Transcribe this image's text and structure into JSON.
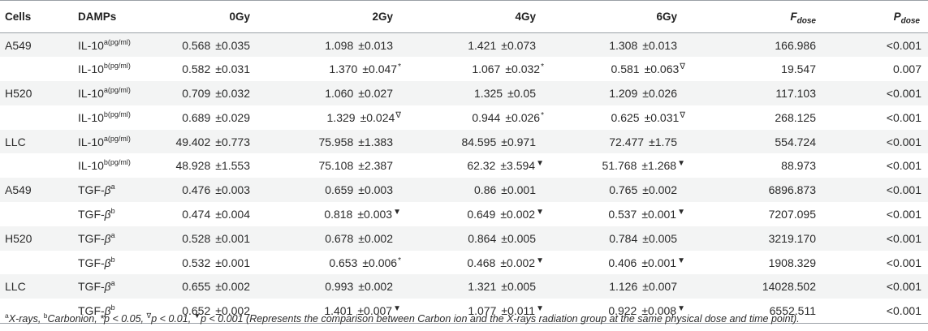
{
  "headers": {
    "cells": "Cells",
    "damps": "DAMPs",
    "d0": "0Gy",
    "d2": "2Gy",
    "d4": "4Gy",
    "d6": "6Gy",
    "f_main": "F",
    "f_sub": "dose",
    "p_main": "P",
    "p_sub": "dose"
  },
  "pm": "±",
  "rows": [
    {
      "cell": "A549",
      "base": "IL-10",
      "sup": "a(pg/ml)",
      "beta": false,
      "v0": "0.568",
      "e0": "0.035",
      "m0": "",
      "v2": "1.098",
      "e2": "0.013",
      "m2": "",
      "v4": "1.421",
      "e4": "0.073",
      "m4": "",
      "v6": "1.308",
      "e6": "0.013",
      "m6": "",
      "f": "166.986",
      "p": "<0.001"
    },
    {
      "cell": "",
      "base": "IL-10",
      "sup": "b(pg/ml)",
      "beta": false,
      "v0": "0.582",
      "e0": "0.031",
      "m0": "",
      "v2": "1.370",
      "e2": "0.047",
      "m2": "*",
      "v4": "1.067",
      "e4": "0.032",
      "m4": "*",
      "v6": "0.581",
      "e6": "0.063",
      "m6": "∇",
      "f": "19.547",
      "p": "0.007"
    },
    {
      "cell": "H520",
      "base": "IL-10",
      "sup": "a(pg/ml)",
      "beta": false,
      "v0": "0.709",
      "e0": "0.032",
      "m0": "",
      "v2": "1.060",
      "e2": "0.027",
      "m2": "",
      "v4": "1.325",
      "e4": "0.05",
      "m4": "",
      "v6": "1.209",
      "e6": "0.026",
      "m6": "",
      "f": "117.103",
      "p": "<0.001"
    },
    {
      "cell": "",
      "base": "IL-10",
      "sup": "b(pg/ml)",
      "beta": false,
      "v0": "0.689",
      "e0": "0.029",
      "m0": "",
      "v2": "1.329",
      "e2": "0.024",
      "m2": "∇",
      "v4": "0.944",
      "e4": "0.026",
      "m4": "*",
      "v6": "0.625",
      "e6": "0.031",
      "m6": "∇",
      "f": "268.125",
      "p": "<0.001"
    },
    {
      "cell": "LLC",
      "base": "IL-10",
      "sup": "a(pg/ml)",
      "beta": false,
      "v0": "49.402",
      "e0": "0.773",
      "m0": "",
      "v2": "75.958",
      "e2": "1.383",
      "m2": "",
      "v4": "84.595",
      "e4": "0.971",
      "m4": "",
      "v6": "72.477",
      "e6": "1.75",
      "m6": "",
      "f": "554.724",
      "p": "<0.001"
    },
    {
      "cell": "",
      "base": "IL-10",
      "sup": "b(pg/ml)",
      "beta": false,
      "v0": "48.928",
      "e0": "1.553",
      "m0": "",
      "v2": "75.108",
      "e2": "2.387",
      "m2": "",
      "v4": "62.32",
      "e4": "3.594",
      "m4": "▼",
      "v6": "51.768",
      "e6": "1.268",
      "m6": "▼",
      "f": "88.973",
      "p": "<0.001"
    },
    {
      "cell": "A549",
      "base": "TGF-",
      "sup": "a",
      "beta": true,
      "v0": "0.476",
      "e0": "0.003",
      "m0": "",
      "v2": "0.659",
      "e2": "0.003",
      "m2": "",
      "v4": "0.86",
      "e4": "0.001",
      "m4": "",
      "v6": "0.765",
      "e6": "0.002",
      "m6": "",
      "f": "6896.873",
      "p": "<0.001"
    },
    {
      "cell": "",
      "base": "TGF-",
      "sup": "b",
      "beta": true,
      "v0": "0.474",
      "e0": "0.004",
      "m0": "",
      "v2": "0.818",
      "e2": "0.003",
      "m2": "▼",
      "v4": "0.649",
      "e4": "0.002",
      "m4": "▼",
      "v6": "0.537",
      "e6": "0.001",
      "m6": "▼",
      "f": "7207.095",
      "p": "<0.001"
    },
    {
      "cell": "H520",
      "base": "TGF-",
      "sup": "a",
      "beta": true,
      "v0": "0.528",
      "e0": "0.001",
      "m0": "",
      "v2": "0.678",
      "e2": "0.002",
      "m2": "",
      "v4": "0.864",
      "e4": "0.005",
      "m4": "",
      "v6": "0.784",
      "e6": "0.005",
      "m6": "",
      "f": "3219.170",
      "p": "<0.001"
    },
    {
      "cell": "",
      "base": "TGF-",
      "sup": "b",
      "beta": true,
      "v0": "0.532",
      "e0": "0.001",
      "m0": "",
      "v2": "0.653",
      "e2": "0.006",
      "m2": "*",
      "v4": "0.468",
      "e4": "0.002",
      "m4": "▼",
      "v6": "0.406",
      "e6": "0.001",
      "m6": "▼",
      "f": "1908.329",
      "p": "<0.001"
    },
    {
      "cell": "LLC",
      "base": "TGF-",
      "sup": "a",
      "beta": true,
      "v0": "0.655",
      "e0": "0.002",
      "m0": "",
      "v2": "0.993",
      "e2": "0.002",
      "m2": "",
      "v4": "1.321",
      "e4": "0.005",
      "m4": "",
      "v6": "1.126",
      "e6": "0.007",
      "m6": "",
      "f": "14028.502",
      "p": "<0.001"
    },
    {
      "cell": "",
      "base": "TGF-",
      "sup": "b",
      "beta": true,
      "v0": "0.652",
      "e0": "0.002",
      "m0": "",
      "v2": "1.401",
      "e2": "0.007",
      "m2": "▼",
      "v4": "1.077",
      "e4": "0.011",
      "m4": "▼",
      "v6": "0.922",
      "e6": "0.008",
      "m6": "▼",
      "f": "6552.511",
      "p": "<0.001"
    }
  ],
  "beta_symbol": "β",
  "footnote": {
    "a_sup": "a",
    "a_text": "X-rays, ",
    "b_sup": "b",
    "b_text": "Carbonion, ",
    "p1": "*p < 0.05, ",
    "p2_sym": "∇",
    "p2": "p < 0.01, ",
    "p3_sym": "▼",
    "p3": "p < 0.001 (Represents the comparison between Carbon ion and the X-rays radiation group at the same physical dose and time point)."
  }
}
